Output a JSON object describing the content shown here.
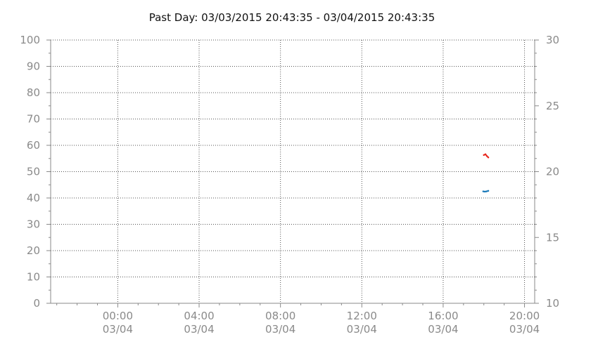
{
  "chart_data": {
    "type": "line",
    "title": "Past Day: 03/03/2015 20:43:35 - 03/04/2015 20:43:35",
    "xlabel": "",
    "ylabel": "",
    "y_left": {
      "lim": [
        0,
        100
      ],
      "ticks": [
        "0",
        "10",
        "20",
        "30",
        "40",
        "50",
        "60",
        "70",
        "80",
        "90",
        "100"
      ]
    },
    "y_right": {
      "lim": [
        10,
        30
      ],
      "ticks": [
        "10",
        "15",
        "20",
        "25",
        "30"
      ]
    },
    "x_range_hours": [
      -3.3,
      20.5
    ],
    "x_ticks": [
      {
        "hour": 0,
        "time": "00:00",
        "date": "03/04"
      },
      {
        "hour": 4,
        "time": "04:00",
        "date": "03/04"
      },
      {
        "hour": 8,
        "time": "08:00",
        "date": "03/04"
      },
      {
        "hour": 12,
        "time": "12:00",
        "date": "03/04"
      },
      {
        "hour": 16,
        "time": "16:00",
        "date": "03/04"
      },
      {
        "hour": 20,
        "time": "20:00",
        "date": "03/04"
      }
    ],
    "grid": true,
    "series": [
      {
        "axis": "left",
        "color": "#e8271d",
        "x_hours": [
          18.0,
          18.08,
          18.15,
          18.22
        ],
        "values": [
          56.3,
          56.6,
          55.9,
          55.4
        ]
      },
      {
        "axis": "left",
        "color": "#1878b8",
        "x_hours": [
          17.97,
          18.05,
          18.13,
          18.22
        ],
        "values": [
          42.5,
          42.4,
          42.5,
          42.7
        ]
      }
    ]
  }
}
